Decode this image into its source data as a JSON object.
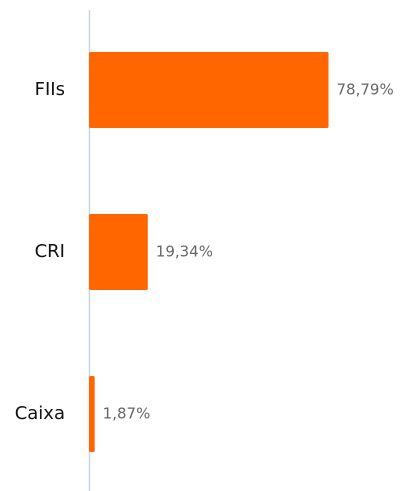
{
  "chart_data": {
    "type": "barh",
    "categories": [
      "FIIs",
      "CRI",
      "Caixa"
    ],
    "values": [
      78.79,
      19.34,
      1.87
    ],
    "value_labels": [
      "78,79%",
      "19,34%",
      "1,87%"
    ],
    "color": "#ff6600",
    "xlim": [
      0,
      100
    ]
  }
}
